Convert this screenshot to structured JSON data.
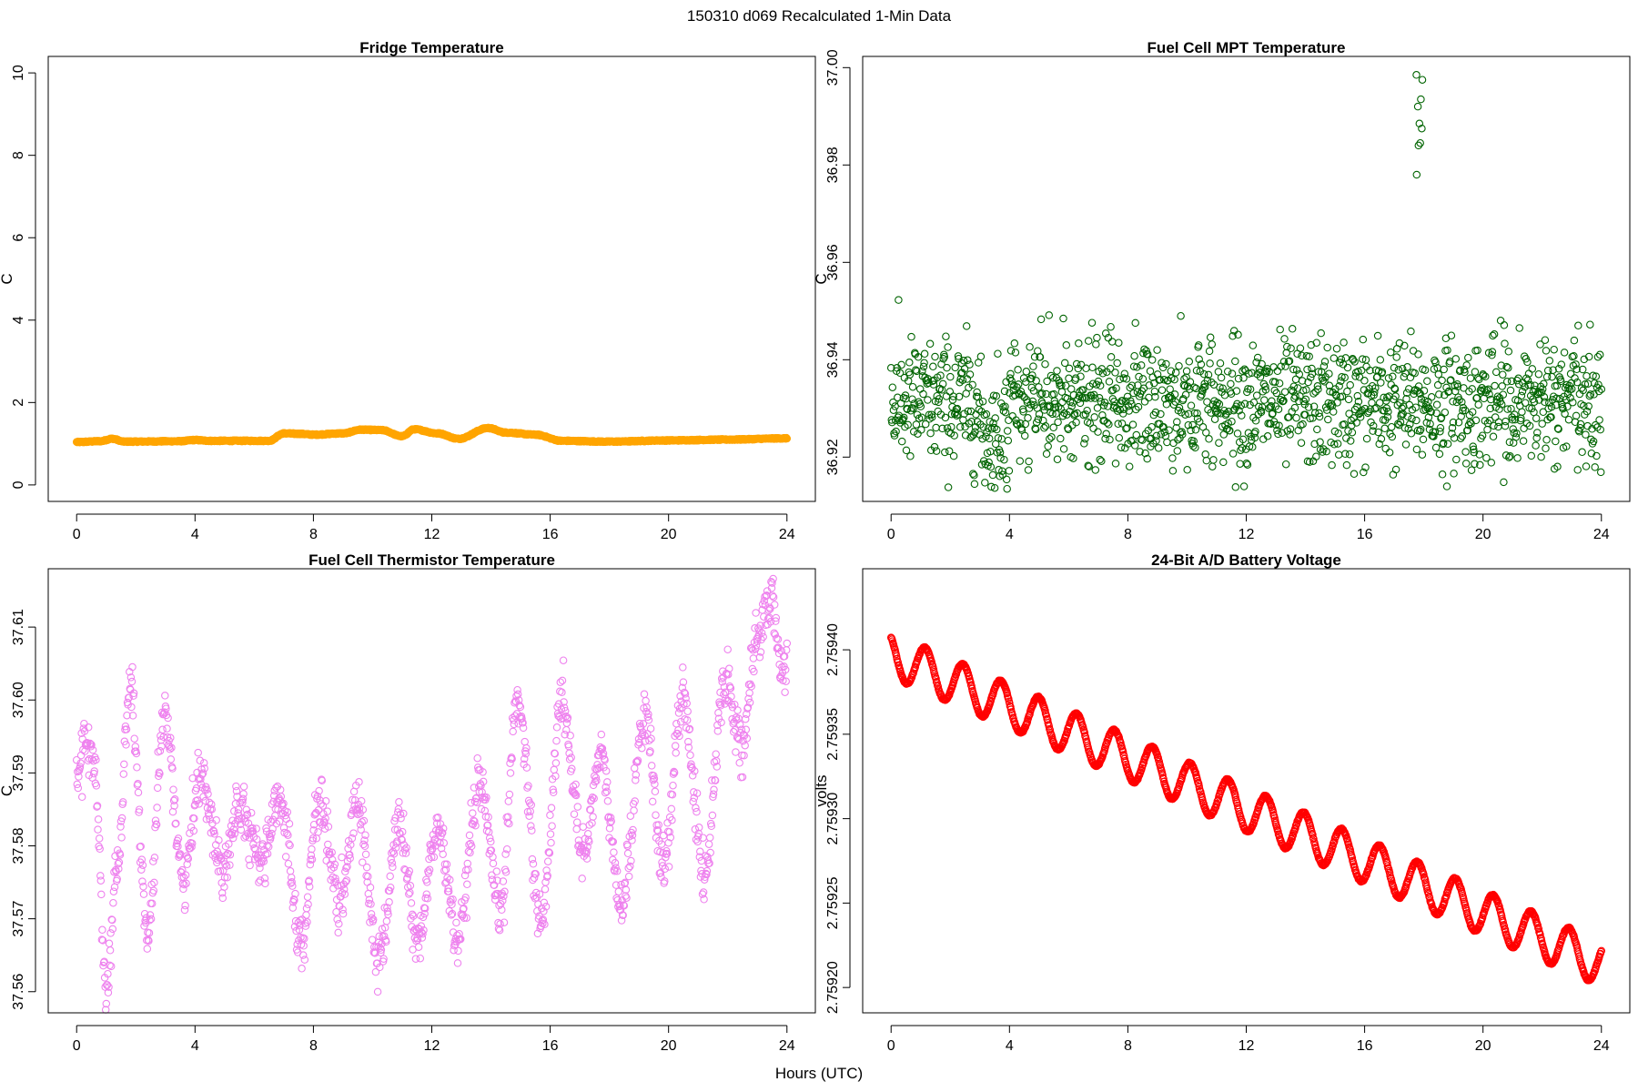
{
  "figure": {
    "title": "150310    d069   Recalculated 1-Min Data",
    "xlabel": "Hours (UTC)"
  },
  "chart_data": [
    {
      "type": "scatter",
      "title": "Fridge Temperature",
      "xlabel": "Hours (UTC)",
      "ylabel": "C",
      "xlim": [
        -0.96,
        24.96
      ],
      "ylim": [
        -0.4,
        10.4
      ],
      "xticks": [
        0,
        4,
        8,
        12,
        16,
        20,
        24
      ],
      "yticks": [
        0,
        2,
        4,
        6,
        8,
        10
      ],
      "ytick_labels": [
        "0",
        "2",
        "4",
        "6",
        "8",
        "10"
      ],
      "color": "#ffa500",
      "n_points": 1440,
      "generator": "fridge",
      "series": [
        {
          "name": "Fridge Temperature",
          "x_range": [
            0,
            24
          ],
          "key_points": [
            [
              0.0,
              1.04
            ],
            [
              0.8,
              1.06
            ],
            [
              1.2,
              1.12
            ],
            [
              1.6,
              1.05
            ],
            [
              3.5,
              1.06
            ],
            [
              4.0,
              1.09
            ],
            [
              4.5,
              1.07
            ],
            [
              6.5,
              1.07
            ],
            [
              7.0,
              1.25
            ],
            [
              7.5,
              1.24
            ],
            [
              8.0,
              1.22
            ],
            [
              9.0,
              1.25
            ],
            [
              9.6,
              1.34
            ],
            [
              10.3,
              1.33
            ],
            [
              11.0,
              1.18
            ],
            [
              11.4,
              1.35
            ],
            [
              12.2,
              1.25
            ],
            [
              12.9,
              1.12
            ],
            [
              13.9,
              1.38
            ],
            [
              14.5,
              1.27
            ],
            [
              15.5,
              1.22
            ],
            [
              16.4,
              1.07
            ],
            [
              18.0,
              1.05
            ],
            [
              20.0,
              1.08
            ],
            [
              22.0,
              1.1
            ],
            [
              24.0,
              1.13
            ]
          ]
        }
      ]
    },
    {
      "type": "scatter",
      "title": "Fuel Cell MPT Temperature",
      "xlabel": "Hours (UTC)",
      "ylabel": "C",
      "xlim": [
        -0.96,
        24.96
      ],
      "ylim": [
        36.9109,
        37.0023
      ],
      "xticks": [
        0,
        4,
        8,
        12,
        16,
        20,
        24
      ],
      "yticks": [
        36.92,
        36.94,
        36.96,
        36.98,
        37.0
      ],
      "ytick_labels": [
        "36.92",
        "36.94",
        "36.96",
        "36.98",
        "37.00"
      ],
      "color": "#006400",
      "n_points": 1440,
      "generator": "mpt",
      "series": [
        {
          "name": "Fuel Cell MPT Temperature",
          "x_range": [
            0,
            24
          ],
          "mean": 36.931,
          "spread": [
            36.913,
            36.954
          ],
          "outliers": [
            [
              17.75,
              36.9985
            ],
            [
              17.8,
              36.992
            ],
            [
              17.85,
              36.9885
            ],
            [
              17.9,
              36.9935
            ],
            [
              17.95,
              36.9975
            ],
            [
              17.82,
              36.984
            ],
            [
              17.88,
              36.9845
            ],
            [
              17.76,
              36.978
            ],
            [
              17.93,
              36.9875
            ]
          ]
        }
      ]
    },
    {
      "type": "scatter",
      "title": "Fuel Cell Thermistor Temperature",
      "xlabel": "Hours (UTC)",
      "ylabel": "C",
      "xlim": [
        -0.96,
        24.96
      ],
      "ylim": [
        37.5571,
        37.618
      ],
      "xticks": [
        0,
        4,
        8,
        12,
        16,
        20,
        24
      ],
      "yticks": [
        37.56,
        37.57,
        37.58,
        37.59,
        37.6,
        37.61
      ],
      "ytick_labels": [
        "37.56",
        "37.57",
        "37.58",
        "37.59",
        "37.60",
        "37.61"
      ],
      "color": "#ee82ee",
      "n_points": 1440,
      "generator": "thermistor",
      "series": [
        {
          "name": "Fuel Cell Thermistor Temperature",
          "x_range": [
            0,
            24
          ],
          "key_points": [
            [
              0.0,
              37.59
            ],
            [
              0.3,
              37.594
            ],
            [
              0.6,
              37.591
            ],
            [
              1.0,
              37.561
            ],
            [
              1.4,
              37.578
            ],
            [
              1.8,
              37.602
            ],
            [
              2.4,
              37.568
            ],
            [
              3.0,
              37.598
            ],
            [
              3.6,
              37.575
            ],
            [
              4.2,
              37.59
            ],
            [
              4.9,
              37.577
            ],
            [
              5.5,
              37.586
            ],
            [
              6.2,
              37.578
            ],
            [
              6.9,
              37.586
            ],
            [
              7.6,
              37.567
            ],
            [
              8.2,
              37.586
            ],
            [
              8.9,
              37.572
            ],
            [
              9.5,
              37.586
            ],
            [
              10.2,
              37.564
            ],
            [
              10.9,
              37.583
            ],
            [
              11.5,
              37.567
            ],
            [
              12.2,
              37.582
            ],
            [
              12.9,
              37.567
            ],
            [
              13.6,
              37.588
            ],
            [
              14.3,
              37.571
            ],
            [
              14.9,
              37.6
            ],
            [
              15.7,
              37.57
            ],
            [
              16.4,
              37.6
            ],
            [
              17.1,
              37.579
            ],
            [
              17.7,
              37.592
            ],
            [
              18.4,
              37.572
            ],
            [
              19.2,
              37.598
            ],
            [
              19.8,
              37.577
            ],
            [
              20.5,
              37.6
            ],
            [
              21.2,
              37.576
            ],
            [
              21.9,
              37.603
            ],
            [
              22.5,
              37.594
            ],
            [
              23.0,
              37.608
            ],
            [
              23.4,
              37.614
            ],
            [
              23.9,
              37.604
            ]
          ]
        }
      ]
    },
    {
      "type": "scatter",
      "title": "24-Bit A/D Battery Voltage",
      "xlabel": "Hours (UTC)",
      "ylabel": "volts",
      "xlim": [
        -0.96,
        24.96
      ],
      "ylim": [
        2.759185,
        2.759448
      ],
      "xticks": [
        0,
        4,
        8,
        12,
        16,
        20,
        24
      ],
      "yticks": [
        2.7592,
        2.75925,
        2.7593,
        2.75935,
        2.7594
      ],
      "ytick_labels": [
        "2.75920",
        "2.75925",
        "2.75930",
        "2.75935",
        "2.75940"
      ],
      "color": "#ff0000",
      "n_points": 1440,
      "generator": "voltage",
      "series": [
        {
          "name": "24-Bit A/D Battery Voltage",
          "x_range": [
            0,
            24
          ],
          "trend": [
            [
              0.0,
              2.759397
            ],
            [
              24.0,
              2.759214
            ]
          ],
          "oscillation_amplitude": 1.3e-05,
          "oscillation_period_hours": 1.28
        }
      ]
    }
  ]
}
